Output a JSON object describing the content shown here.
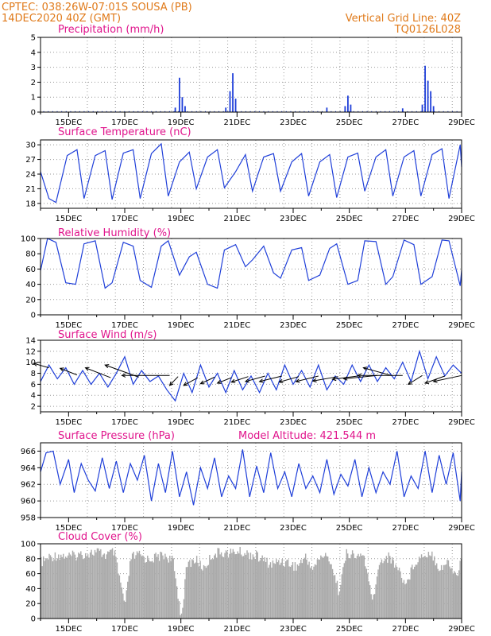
{
  "header": {
    "line1_left": "CPTEC:   038:26W-07:01S   SOUSA (PB)",
    "line2_left": "14DEC2020 40Z (GMT)",
    "line1_right": "Vertical Grid Line: 40Z",
    "line2_right": "TQ0126L028"
  },
  "colors": {
    "header": "#e07a1a",
    "title": "#e0148c",
    "series": "#1f3fd9",
    "cloud": "#aaaaaa",
    "wind_arrow": "#000000"
  },
  "x_axis_labels": [
    "15DEC",
    "17DEC",
    "19DEC",
    "21DEC",
    "23DEC",
    "25DEC",
    "27DEC",
    "29DEC"
  ],
  "chart_data": [
    {
      "type": "bar",
      "title": "Precipitation (mm/h)",
      "x_unit": "day_of_dec",
      "xlim": [
        14,
        29
      ],
      "ylim": [
        0,
        5
      ],
      "yticks": [
        0,
        1,
        2,
        3,
        4,
        5
      ],
      "grid": true,
      "peaks": [
        {
          "x": 18.8,
          "y": 0.3
        },
        {
          "x": 18.95,
          "y": 2.3
        },
        {
          "x": 19.05,
          "y": 1.0
        },
        {
          "x": 19.15,
          "y": 0.4
        },
        {
          "x": 20.6,
          "y": 0.3
        },
        {
          "x": 20.75,
          "y": 1.4
        },
        {
          "x": 20.85,
          "y": 2.6
        },
        {
          "x": 20.95,
          "y": 0.9
        },
        {
          "x": 24.2,
          "y": 0.3
        },
        {
          "x": 24.85,
          "y": 0.4
        },
        {
          "x": 24.95,
          "y": 1.1
        },
        {
          "x": 25.05,
          "y": 0.5
        },
        {
          "x": 26.9,
          "y": 0.25
        },
        {
          "x": 27.6,
          "y": 0.5
        },
        {
          "x": 27.7,
          "y": 3.1
        },
        {
          "x": 27.8,
          "y": 2.1
        },
        {
          "x": 27.9,
          "y": 1.4
        },
        {
          "x": 28.0,
          "y": 0.4
        }
      ]
    },
    {
      "type": "line",
      "title": "Surface Temperature (nC)",
      "x_unit": "day_of_dec",
      "xlim": [
        14,
        29
      ],
      "ylim": [
        17,
        31
      ],
      "yticks": [
        18,
        21,
        24,
        27,
        30
      ],
      "grid": true,
      "x": [
        14.0,
        14.3,
        14.55,
        14.95,
        15.3,
        15.55,
        15.95,
        16.3,
        16.55,
        16.95,
        17.3,
        17.55,
        17.95,
        18.3,
        18.55,
        18.95,
        19.3,
        19.55,
        19.95,
        20.3,
        20.55,
        20.95,
        21.3,
        21.55,
        21.95,
        22.3,
        22.55,
        22.95,
        23.3,
        23.55,
        23.95,
        24.3,
        24.55,
        24.95,
        25.3,
        25.55,
        25.95,
        26.3,
        26.55,
        26.95,
        27.3,
        27.55,
        27.95,
        28.3,
        28.55,
        28.95,
        29.0
      ],
      "y": [
        24.5,
        19.0,
        18.2,
        27.8,
        29.0,
        19.0,
        27.8,
        28.8,
        18.8,
        28.3,
        29.0,
        19.0,
        28.2,
        30.2,
        19.5,
        26.5,
        28.5,
        21.0,
        27.5,
        29.0,
        21.2,
        24.5,
        28.0,
        20.5,
        27.5,
        28.2,
        20.5,
        26.5,
        28.2,
        19.5,
        26.5,
        28.0,
        19.2,
        27.5,
        28.3,
        20.5,
        27.5,
        29.0,
        19.5,
        27.5,
        28.8,
        19.5,
        28.0,
        29.2,
        19.0,
        30.0,
        25.5
      ]
    },
    {
      "type": "line",
      "title": "Relative Humidity (%)",
      "x_unit": "day_of_dec",
      "xlim": [
        14,
        29
      ],
      "ylim": [
        0,
        100
      ],
      "yticks": [
        0,
        20,
        40,
        60,
        80,
        100
      ],
      "grid": true,
      "x": [
        14.0,
        14.25,
        14.55,
        14.9,
        15.25,
        15.55,
        15.95,
        16.3,
        16.55,
        16.95,
        17.3,
        17.55,
        17.95,
        18.3,
        18.55,
        18.95,
        19.3,
        19.55,
        19.95,
        20.3,
        20.55,
        20.95,
        21.3,
        21.55,
        21.95,
        22.3,
        22.55,
        22.95,
        23.3,
        23.55,
        23.95,
        24.3,
        24.55,
        24.95,
        25.3,
        25.55,
        25.95,
        26.3,
        26.55,
        26.95,
        27.3,
        27.55,
        27.95,
        28.3,
        28.55,
        28.95,
        29.0
      ],
      "y": [
        58,
        100,
        95,
        42,
        40,
        93,
        97,
        35,
        42,
        95,
        90,
        45,
        36,
        90,
        97,
        52,
        76,
        82,
        40,
        35,
        85,
        92,
        63,
        72,
        90,
        55,
        48,
        85,
        88,
        45,
        52,
        87,
        93,
        40,
        45,
        97,
        96,
        40,
        50,
        98,
        92,
        40,
        50,
        98,
        97,
        38,
        58
      ]
    },
    {
      "type": "line",
      "title": "Surface Wind (m/s)",
      "x_unit": "day_of_dec",
      "xlim": [
        14,
        29
      ],
      "ylim": [
        1,
        14
      ],
      "yticks": [
        2,
        4,
        6,
        8,
        10,
        12,
        14
      ],
      "grid": true,
      "x": [
        14.0,
        14.3,
        14.6,
        14.9,
        15.2,
        15.5,
        15.8,
        16.1,
        16.4,
        16.7,
        17.0,
        17.3,
        17.6,
        17.9,
        18.2,
        18.5,
        18.8,
        19.1,
        19.4,
        19.7,
        20.0,
        20.3,
        20.6,
        20.9,
        21.2,
        21.5,
        21.8,
        22.1,
        22.4,
        22.7,
        23.0,
        23.3,
        23.6,
        23.9,
        24.2,
        24.5,
        24.8,
        25.1,
        25.4,
        25.7,
        26.0,
        26.3,
        26.6,
        26.9,
        27.2,
        27.5,
        27.8,
        28.1,
        28.4,
        28.7,
        29.0
      ],
      "y": [
        6.5,
        9.5,
        7.0,
        9.0,
        6.0,
        8.5,
        6.0,
        8.0,
        5.5,
        8.0,
        11.0,
        6.0,
        8.5,
        6.5,
        7.5,
        5.0,
        3.0,
        8.0,
        4.5,
        9.5,
        5.5,
        8.0,
        4.5,
        8.5,
        5.0,
        7.5,
        4.5,
        8.0,
        5.0,
        9.5,
        6.0,
        8.5,
        5.5,
        9.5,
        5.0,
        7.5,
        6.0,
        9.5,
        6.5,
        9.5,
        6.5,
        9.0,
        7.0,
        10.0,
        6.5,
        12.0,
        7.0,
        11.0,
        7.5,
        9.5,
        8.0
      ],
      "wind_vectors": [
        {
          "x": 14.3,
          "y": 9.0,
          "dx": -0.55,
          "dy": 0.8
        },
        {
          "x": 15.3,
          "y": 7.7,
          "dx": -0.6,
          "dy": 1.2
        },
        {
          "x": 16.5,
          "y": 7.2,
          "dx": -0.9,
          "dy": 1.8
        },
        {
          "x": 17.5,
          "y": 7.3,
          "dx": -1.2,
          "dy": 2.2
        },
        {
          "x": 18.6,
          "y": 7.6,
          "dx": -1.7,
          "dy": 0.0
        },
        {
          "x": 18.9,
          "y": 7.4,
          "dx": -0.3,
          "dy": -1.6
        },
        {
          "x": 19.6,
          "y": 7.2,
          "dx": -0.5,
          "dy": -1.4
        },
        {
          "x": 20.2,
          "y": 7.3,
          "dx": -0.5,
          "dy": -1.2
        },
        {
          "x": 20.8,
          "y": 7.2,
          "dx": -0.5,
          "dy": -1.0
        },
        {
          "x": 21.4,
          "y": 7.4,
          "dx": -0.6,
          "dy": -1.0
        },
        {
          "x": 22.0,
          "y": 7.5,
          "dx": -0.7,
          "dy": -1.0
        },
        {
          "x": 22.6,
          "y": 7.5,
          "dx": -0.8,
          "dy": -1.0
        },
        {
          "x": 23.2,
          "y": 7.4,
          "dx": -0.7,
          "dy": -1.0
        },
        {
          "x": 23.9,
          "y": 7.5,
          "dx": -0.8,
          "dy": -1.0
        },
        {
          "x": 24.6,
          "y": 7.4,
          "dx": -0.9,
          "dy": -0.8
        },
        {
          "x": 25.3,
          "y": 7.5,
          "dx": -0.9,
          "dy": -0.6
        },
        {
          "x": 26.0,
          "y": 7.6,
          "dx": -1.2,
          "dy": -0.6
        },
        {
          "x": 26.5,
          "y": 7.6,
          "dx": -1.0,
          "dy": 1.4
        },
        {
          "x": 26.9,
          "y": 7.6,
          "dx": -1.6,
          "dy": 0.0
        },
        {
          "x": 27.6,
          "y": 7.6,
          "dx": -0.5,
          "dy": -1.6
        },
        {
          "x": 28.4,
          "y": 7.5,
          "dx": -0.7,
          "dy": -1.3
        },
        {
          "x": 29.0,
          "y": 7.6,
          "dx": -1.0,
          "dy": -1.1
        }
      ]
    },
    {
      "type": "line",
      "title": "Surface Pressure (hPa)",
      "annotation": "Model Altitude: 421.544 m",
      "x_unit": "day_of_dec",
      "xlim": [
        14,
        29
      ],
      "ylim": [
        958,
        967
      ],
      "yticks": [
        958,
        960,
        962,
        964,
        966
      ],
      "grid": true,
      "x": [
        14.0,
        14.2,
        14.45,
        14.7,
        15.0,
        15.2,
        15.45,
        15.7,
        15.95,
        16.2,
        16.45,
        16.7,
        16.95,
        17.2,
        17.45,
        17.7,
        17.95,
        18.2,
        18.45,
        18.7,
        18.95,
        19.2,
        19.45,
        19.7,
        19.95,
        20.2,
        20.45,
        20.7,
        20.95,
        21.2,
        21.45,
        21.7,
        21.95,
        22.2,
        22.45,
        22.7,
        22.95,
        23.2,
        23.45,
        23.7,
        23.95,
        24.2,
        24.45,
        24.7,
        24.95,
        25.2,
        25.45,
        25.7,
        25.95,
        26.2,
        26.45,
        26.7,
        26.95,
        27.2,
        27.45,
        27.7,
        27.95,
        28.2,
        28.45,
        28.7,
        28.95,
        29.0
      ],
      "y": [
        963.5,
        965.8,
        966.0,
        962.0,
        965.0,
        961.0,
        964.5,
        962.5,
        961.2,
        965.2,
        961.5,
        964.8,
        961.0,
        964.5,
        962.5,
        965.5,
        960.0,
        964.5,
        961.0,
        966.0,
        960.5,
        963.5,
        959.5,
        964.0,
        961.5,
        965.2,
        960.5,
        963.0,
        961.5,
        966.2,
        960.5,
        964.2,
        961.0,
        965.8,
        961.5,
        963.5,
        960.5,
        964.5,
        961.5,
        963.0,
        961.0,
        965.0,
        960.8,
        963.2,
        961.8,
        965.0,
        960.5,
        964.0,
        961.0,
        963.5,
        962.0,
        966.0,
        960.5,
        963.0,
        961.5,
        966.0,
        961.0,
        965.5,
        962.0,
        965.8,
        960.0,
        963.5
      ]
    },
    {
      "type": "area",
      "title": "Cloud Cover (%)",
      "x_unit": "day_of_dec",
      "xlim": [
        14,
        29
      ],
      "ylim": [
        0,
        100
      ],
      "yticks": [
        0,
        20,
        40,
        60,
        80,
        100
      ],
      "grid": true,
      "x": [
        14.0,
        14.3,
        14.6,
        15.0,
        15.3,
        15.6,
        16.0,
        16.3,
        16.6,
        17.0,
        17.2,
        17.5,
        17.8,
        18.1,
        18.4,
        18.7,
        19.0,
        19.2,
        19.5,
        19.8,
        20.1,
        20.4,
        20.7,
        21.0,
        21.3,
        21.6,
        21.9,
        22.2,
        22.5,
        22.8,
        23.1,
        23.4,
        23.7,
        24.0,
        24.3,
        24.6,
        24.9,
        25.2,
        25.5,
        25.8,
        26.1,
        26.4,
        26.7,
        27.0,
        27.3,
        27.6,
        27.9,
        28.2,
        28.5,
        28.8,
        29.0
      ],
      "y": [
        78,
        85,
        88,
        86,
        88,
        90,
        92,
        88,
        92,
        20,
        85,
        88,
        82,
        85,
        88,
        80,
        5,
        75,
        82,
        70,
        88,
        92,
        90,
        93,
        90,
        88,
        82,
        75,
        80,
        78,
        72,
        85,
        70,
        88,
        82,
        40,
        92,
        85,
        88,
        25,
        82,
        85,
        72,
        48,
        78,
        88,
        92,
        70,
        78,
        60,
        85
      ]
    }
  ]
}
